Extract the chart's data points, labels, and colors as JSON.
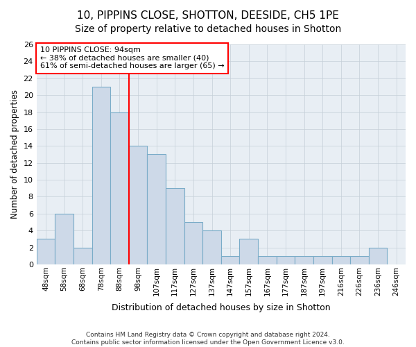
{
  "title1": "10, PIPPINS CLOSE, SHOTTON, DEESIDE, CH5 1PE",
  "title2": "Size of property relative to detached houses in Shotton",
  "xlabel": "Distribution of detached houses by size in Shotton",
  "ylabel": "Number of detached properties",
  "categories": [
    "48sqm",
    "58sqm",
    "68sqm",
    "78sqm",
    "88sqm",
    "98sqm",
    "107sqm",
    "117sqm",
    "127sqm",
    "137sqm",
    "147sqm",
    "157sqm",
    "167sqm",
    "177sqm",
    "187sqm",
    "197sqm",
    "216sqm",
    "226sqm",
    "236sqm",
    "246sqm"
  ],
  "values": [
    3,
    6,
    2,
    21,
    18,
    14,
    13,
    9,
    5,
    4,
    1,
    3,
    1,
    1,
    1,
    1,
    1,
    1,
    2,
    0
  ],
  "bar_color": "#cdd9e8",
  "bar_edge_color": "#7aacc8",
  "vline_x": 4.5,
  "ylim": [
    0,
    26
  ],
  "yticks": [
    0,
    2,
    4,
    6,
    8,
    10,
    12,
    14,
    16,
    18,
    20,
    22,
    24,
    26
  ],
  "annotation_text": "10 PIPPINS CLOSE: 94sqm\n← 38% of detached houses are smaller (40)\n61% of semi-detached houses are larger (65) →",
  "annotation_box_color": "white",
  "annotation_box_edge_color": "red",
  "footer_text": "Contains HM Land Registry data © Crown copyright and database right 2024.\nContains public sector information licensed under the Open Government Licence v3.0.",
  "background_color": "white",
  "plot_background_color": "#e8eef4",
  "grid_color": "#c5cfd8",
  "title_fontsize": 11,
  "subtitle_fontsize": 10
}
